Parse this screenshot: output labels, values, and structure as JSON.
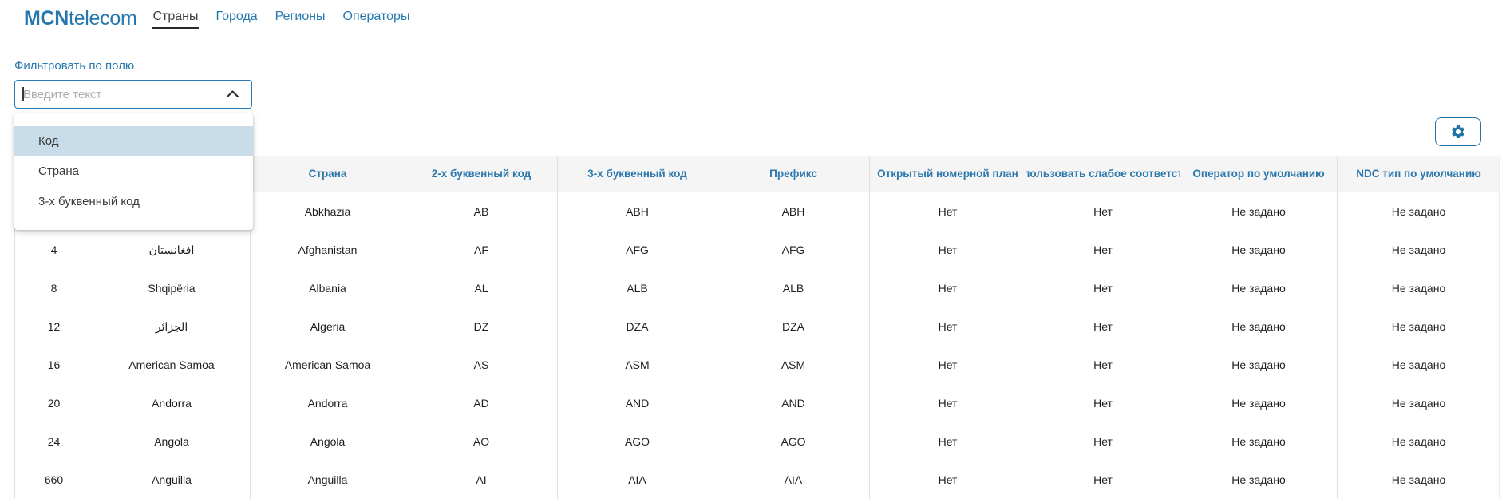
{
  "brand": {
    "bold": "MCN",
    "regular": "telecom"
  },
  "nav": {
    "items": [
      {
        "label": "Страны",
        "active": true
      },
      {
        "label": "Города",
        "active": false
      },
      {
        "label": "Регионы",
        "active": false
      },
      {
        "label": "Операторы",
        "active": false
      }
    ]
  },
  "filter": {
    "label": "Фильтровать по полю",
    "placeholder": "Введите текст",
    "options": [
      {
        "label": "Код",
        "highlighted": true
      },
      {
        "label": "Страна",
        "highlighted": false
      },
      {
        "label": "3-х буквенный код",
        "highlighted": false
      }
    ]
  },
  "table": {
    "columns": [
      {
        "label": ""
      },
      {
        "label": ""
      },
      {
        "label": "Страна"
      },
      {
        "label": "2-х буквенный код"
      },
      {
        "label": "3-х буквенный код"
      },
      {
        "label": "Префикс"
      },
      {
        "label": "Открытый номерной план"
      },
      {
        "label": "пользовать слабое соответст"
      },
      {
        "label": "Оператор по умолчанию"
      },
      {
        "label": "NDC тип по умолчанию"
      }
    ],
    "rows": [
      [
        "",
        "",
        "Abkhazia",
        "AB",
        "ABH",
        "ABH",
        "Нет",
        "Нет",
        "Не задано",
        "Не задано"
      ],
      [
        "4",
        "افغانستان",
        "Afghanistan",
        "AF",
        "AFG",
        "AFG",
        "Нет",
        "Нет",
        "Не задано",
        "Не задано"
      ],
      [
        "8",
        "Shqipëria",
        "Albania",
        "AL",
        "ALB",
        "ALB",
        "Нет",
        "Нет",
        "Не задано",
        "Не задано"
      ],
      [
        "12",
        "الجزائر",
        "Algeria",
        "DZ",
        "DZA",
        "DZA",
        "Нет",
        "Нет",
        "Не задано",
        "Не задано"
      ],
      [
        "16",
        "American Samoa",
        "American Samoa",
        "AS",
        "ASM",
        "ASM",
        "Нет",
        "Нет",
        "Не задано",
        "Не задано"
      ],
      [
        "20",
        "Andorra",
        "Andorra",
        "AD",
        "AND",
        "AND",
        "Нет",
        "Нет",
        "Не задано",
        "Не задано"
      ],
      [
        "24",
        "Angola",
        "Angola",
        "AO",
        "AGO",
        "AGO",
        "Нет",
        "Нет",
        "Не задано",
        "Не задано"
      ],
      [
        "660",
        "Anguilla",
        "Anguilla",
        "AI",
        "AIA",
        "AIA",
        "Нет",
        "Нет",
        "Не задано",
        "Не задано"
      ]
    ]
  },
  "colors": {
    "accent": "#2778ae",
    "header_text": "#2b78ad",
    "header_bg": "#f5f5f5",
    "divider": "#e0e0e0",
    "dropdown_highlight": "#c8dcea"
  }
}
